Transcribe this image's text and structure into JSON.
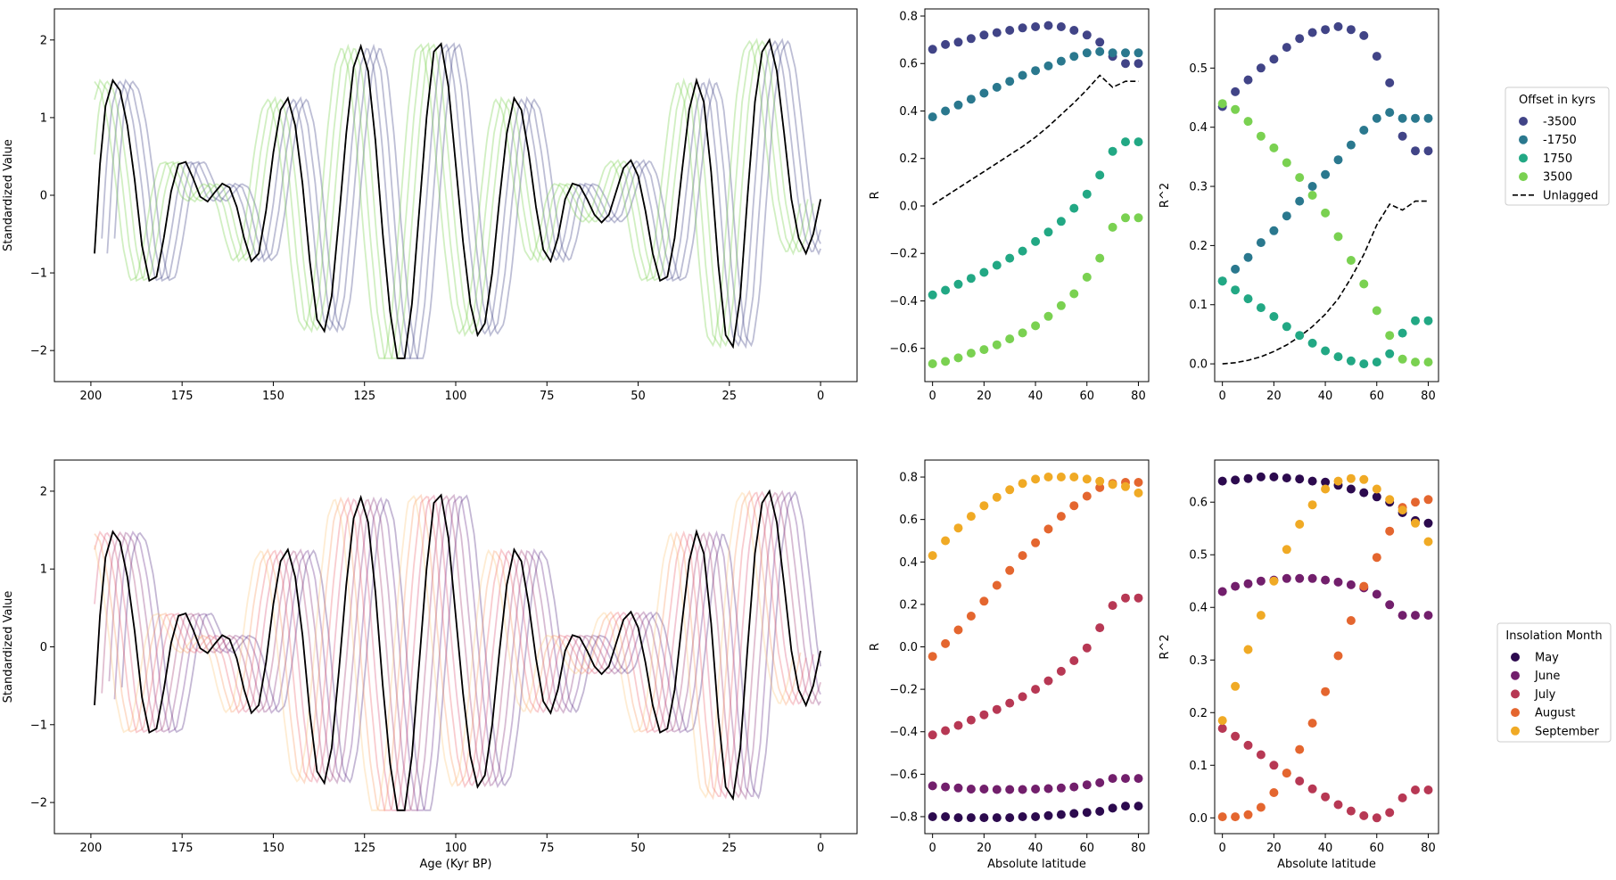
{
  "chart_data": [
    {
      "id": "ts_top",
      "type": "line",
      "ylabel": "Standardized Value",
      "xlabel": "",
      "xlim": [
        210,
        -10
      ],
      "ylim": [
        -2.4,
        2.4
      ],
      "xticks": [
        200,
        175,
        150,
        125,
        100,
        75,
        50,
        25,
        0
      ],
      "yticks": [
        -2,
        -1,
        0,
        1,
        2
      ],
      "reference_series": {
        "color": "#000000",
        "x": [
          199,
          197.5,
          196,
          194,
          192,
          190,
          188,
          186,
          184,
          182,
          180,
          178,
          176,
          174,
          172,
          170,
          168,
          166,
          164,
          162,
          160,
          158,
          156,
          154,
          152,
          150,
          148,
          146,
          144,
          142,
          140,
          138,
          136,
          134,
          132,
          130,
          128,
          126,
          124,
          122,
          120,
          118,
          116,
          114,
          112,
          110,
          108,
          106,
          104,
          102,
          100,
          98,
          96,
          94,
          92,
          90,
          88,
          86,
          84,
          82,
          80,
          78,
          76,
          74,
          72,
          70,
          68,
          66,
          64,
          62,
          60,
          58,
          56,
          54,
          52,
          50,
          48,
          46,
          44,
          42,
          40,
          38,
          36,
          34,
          32,
          30,
          28,
          26,
          24,
          22,
          20,
          18,
          16,
          14,
          12,
          10,
          8,
          6,
          4,
          2,
          0
        ],
        "y": [
          -0.75,
          0.4,
          1.15,
          1.48,
          1.35,
          0.9,
          0.2,
          -0.65,
          -1.1,
          -1.05,
          -0.55,
          0.05,
          0.4,
          0.43,
          0.22,
          -0.02,
          -0.08,
          0.04,
          0.15,
          0.1,
          -0.15,
          -0.55,
          -0.85,
          -0.75,
          -0.2,
          0.55,
          1.1,
          1.25,
          0.9,
          0.15,
          -0.85,
          -1.6,
          -1.75,
          -1.3,
          -0.3,
          0.8,
          1.65,
          1.92,
          1.6,
          0.7,
          -0.5,
          -1.5,
          -2.1,
          -2.1,
          -1.4,
          -0.2,
          1.0,
          1.85,
          1.95,
          1.4,
          0.4,
          -0.6,
          -1.4,
          -1.8,
          -1.65,
          -1.0,
          -0.05,
          0.8,
          1.25,
          1.1,
          0.55,
          -0.15,
          -0.7,
          -0.85,
          -0.55,
          -0.05,
          0.15,
          0.12,
          -0.05,
          -0.25,
          -0.35,
          -0.25,
          0.05,
          0.35,
          0.45,
          0.25,
          -0.2,
          -0.75,
          -1.1,
          -1.05,
          -0.55,
          0.3,
          1.1,
          1.48,
          1.2,
          0.3,
          -0.9,
          -1.8,
          -1.95,
          -1.3,
          0.0,
          1.2,
          1.85,
          2.0,
          1.6,
          0.8,
          -0.05,
          -0.55,
          -0.75,
          -0.5,
          -0.05
        ]
      },
      "lagged_series": {
        "base_phase_x": 199,
        "count": 7,
        "step_kyr": 1.75,
        "colors": [
          "#414487",
          "#414487",
          "#414487",
          "#888888",
          "#7ad151",
          "#7ad151",
          "#7ad151"
        ],
        "alpha": 0.35
      }
    },
    {
      "id": "R_top",
      "type": "scatter",
      "ylabel": "R",
      "xlabel": "",
      "xlim": [
        -3,
        84
      ],
      "ylim": [
        -0.74,
        0.83
      ],
      "xticks": [
        0,
        20,
        40,
        60,
        80
      ],
      "yticks": [
        -0.6,
        -0.4,
        -0.2,
        0.0,
        0.2,
        0.4,
        0.6,
        0.8
      ],
      "x": [
        0,
        5,
        10,
        15,
        20,
        25,
        30,
        35,
        40,
        45,
        50,
        55,
        60,
        65,
        70,
        75,
        80
      ],
      "series": [
        {
          "color": "#414487",
          "values": [
            0.66,
            0.68,
            0.69,
            0.705,
            0.72,
            0.73,
            0.74,
            0.75,
            0.755,
            0.76,
            0.755,
            0.74,
            0.72,
            0.69,
            0.63,
            0.6,
            0.6
          ]
        },
        {
          "color": "#2a788e",
          "values": [
            0.375,
            0.4,
            0.425,
            0.45,
            0.475,
            0.5,
            0.525,
            0.55,
            0.57,
            0.59,
            0.61,
            0.63,
            0.645,
            0.65,
            0.645,
            0.645,
            0.645
          ]
        },
        {
          "color": "#22a884",
          "values": [
            -0.375,
            -0.355,
            -0.33,
            -0.305,
            -0.28,
            -0.25,
            -0.22,
            -0.19,
            -0.15,
            -0.11,
            -0.065,
            -0.01,
            0.05,
            0.13,
            0.23,
            0.27,
            0.27
          ]
        },
        {
          "color": "#7ad151",
          "values": [
            -0.665,
            -0.655,
            -0.64,
            -0.62,
            -0.605,
            -0.585,
            -0.56,
            -0.535,
            -0.505,
            -0.465,
            -0.42,
            -0.37,
            -0.3,
            -0.22,
            -0.09,
            -0.05,
            -0.05
          ]
        }
      ],
      "line": {
        "color": "#000000",
        "values": [
          0.005,
          0.04,
          0.075,
          0.11,
          0.145,
          0.18,
          0.215,
          0.25,
          0.29,
          0.335,
          0.385,
          0.435,
          0.49,
          0.55,
          0.5,
          0.525,
          0.525
        ]
      }
    },
    {
      "id": "R2_top",
      "type": "scatter",
      "ylabel": "R^2",
      "xlabel": "",
      "xlim": [
        -3,
        84
      ],
      "ylim": [
        -0.03,
        0.6
      ],
      "xticks": [
        0,
        20,
        40,
        60,
        80
      ],
      "yticks": [
        0.0,
        0.1,
        0.2,
        0.3,
        0.4,
        0.5
      ],
      "x": [
        0,
        5,
        10,
        15,
        20,
        25,
        30,
        35,
        40,
        45,
        50,
        55,
        60,
        65,
        70,
        75,
        80
      ],
      "series": [
        {
          "color": "#414487",
          "values": [
            0.435,
            0.46,
            0.48,
            0.5,
            0.515,
            0.535,
            0.55,
            0.56,
            0.565,
            0.57,
            0.565,
            0.555,
            0.52,
            0.475,
            0.385,
            0.36,
            0.36
          ]
        },
        {
          "color": "#2a788e",
          "values": [
            0.14,
            0.16,
            0.18,
            0.205,
            0.225,
            0.25,
            0.275,
            0.3,
            0.32,
            0.345,
            0.37,
            0.395,
            0.415,
            0.425,
            0.415,
            0.415,
            0.415
          ]
        },
        {
          "color": "#22a884",
          "values": [
            0.14,
            0.125,
            0.11,
            0.095,
            0.08,
            0.063,
            0.048,
            0.035,
            0.022,
            0.012,
            0.005,
            0.0,
            0.003,
            0.017,
            0.052,
            0.073,
            0.073
          ]
        },
        {
          "color": "#7ad151",
          "values": [
            0.44,
            0.43,
            0.41,
            0.385,
            0.365,
            0.34,
            0.315,
            0.285,
            0.255,
            0.215,
            0.175,
            0.135,
            0.09,
            0.048,
            0.008,
            0.003,
            0.003
          ]
        }
      ],
      "line": {
        "color": "#000000",
        "values": [
          0.0,
          0.002,
          0.006,
          0.012,
          0.021,
          0.032,
          0.046,
          0.063,
          0.084,
          0.11,
          0.145,
          0.185,
          0.235,
          0.27,
          0.26,
          0.275,
          0.275
        ]
      }
    },
    {
      "id": "ts_bottom",
      "type": "line",
      "ylabel": "Standardized Value",
      "xlabel": "Age (Kyr BP)",
      "xlim": [
        210,
        -10
      ],
      "ylim": [
        -2.4,
        2.4
      ],
      "xticks": [
        200,
        175,
        150,
        125,
        100,
        75,
        50,
        25,
        0
      ],
      "yticks": [
        -2,
        -1,
        0,
        1,
        2
      ],
      "reference_series": {
        "color": "#000000",
        "x": [
          199,
          197.5,
          196,
          194,
          192,
          190,
          188,
          186,
          184,
          182,
          180,
          178,
          176,
          174,
          172,
          170,
          168,
          166,
          164,
          162,
          160,
          158,
          156,
          154,
          152,
          150,
          148,
          146,
          144,
          142,
          140,
          138,
          136,
          134,
          132,
          130,
          128,
          126,
          124,
          122,
          120,
          118,
          116,
          114,
          112,
          110,
          108,
          106,
          104,
          102,
          100,
          98,
          96,
          94,
          92,
          90,
          88,
          86,
          84,
          82,
          80,
          78,
          76,
          74,
          72,
          70,
          68,
          66,
          64,
          62,
          60,
          58,
          56,
          54,
          52,
          50,
          48,
          46,
          44,
          42,
          40,
          38,
          36,
          34,
          32,
          30,
          28,
          26,
          24,
          22,
          20,
          18,
          16,
          14,
          12,
          10,
          8,
          6,
          4,
          2,
          0
        ],
        "y": [
          -0.75,
          0.4,
          1.15,
          1.48,
          1.35,
          0.9,
          0.2,
          -0.65,
          -1.1,
          -1.05,
          -0.55,
          0.05,
          0.4,
          0.43,
          0.22,
          -0.02,
          -0.08,
          0.04,
          0.15,
          0.1,
          -0.15,
          -0.55,
          -0.85,
          -0.75,
          -0.2,
          0.55,
          1.1,
          1.25,
          0.9,
          0.15,
          -0.85,
          -1.6,
          -1.75,
          -1.3,
          -0.3,
          0.8,
          1.65,
          1.92,
          1.6,
          0.7,
          -0.5,
          -1.5,
          -2.1,
          -2.1,
          -1.4,
          -0.2,
          1.0,
          1.85,
          1.95,
          1.4,
          0.4,
          -0.6,
          -1.4,
          -1.8,
          -1.65,
          -1.0,
          -0.05,
          0.8,
          1.25,
          1.1,
          0.55,
          -0.15,
          -0.7,
          -0.85,
          -0.55,
          -0.05,
          0.15,
          0.12,
          -0.05,
          -0.25,
          -0.35,
          -0.25,
          0.05,
          0.35,
          0.45,
          0.25,
          -0.2,
          -0.75,
          -1.1,
          -1.05,
          -0.55,
          0.3,
          1.1,
          1.48,
          1.2,
          0.3,
          -0.9,
          -1.8,
          -1.95,
          -1.3,
          0.0,
          1.2,
          1.85,
          2.0,
          1.6,
          0.8,
          -0.05,
          -0.55,
          -0.75,
          -0.5,
          -0.05
        ]
      },
      "lagged_series": {
        "base_phase_x": 199,
        "count": 9,
        "step_kyr": 1.8,
        "colors": [
          "#3b0f70",
          "#5a167e",
          "#7a1d6d",
          "#9a2865",
          "#b73779",
          "#d3436e",
          "#eb5760",
          "#f98e52",
          "#fcbf6c"
        ],
        "alpha": 0.3
      }
    },
    {
      "id": "R_bottom",
      "type": "scatter",
      "ylabel": "R",
      "xlabel": "Absolute latitude",
      "xlim": [
        -3,
        84
      ],
      "ylim": [
        -0.88,
        0.88
      ],
      "xticks": [
        0,
        20,
        40,
        60,
        80
      ],
      "yticks": [
        -0.8,
        -0.6,
        -0.4,
        -0.2,
        0.0,
        0.2,
        0.4,
        0.6,
        0.8
      ],
      "x": [
        0,
        5,
        10,
        15,
        20,
        25,
        30,
        35,
        40,
        45,
        50,
        55,
        60,
        65,
        70,
        75,
        80
      ],
      "series": [
        {
          "color": "#2c0a4e",
          "values": [
            -0.8,
            -0.8,
            -0.805,
            -0.805,
            -0.805,
            -0.805,
            -0.805,
            -0.8,
            -0.8,
            -0.795,
            -0.79,
            -0.785,
            -0.78,
            -0.775,
            -0.76,
            -0.75,
            -0.75
          ]
        },
        {
          "color": "#721f6c",
          "values": [
            -0.655,
            -0.66,
            -0.665,
            -0.67,
            -0.67,
            -0.672,
            -0.672,
            -0.672,
            -0.67,
            -0.668,
            -0.665,
            -0.66,
            -0.65,
            -0.64,
            -0.62,
            -0.62,
            -0.62
          ]
        },
        {
          "color": "#b73854",
          "values": [
            -0.415,
            -0.395,
            -0.37,
            -0.345,
            -0.32,
            -0.295,
            -0.265,
            -0.235,
            -0.2,
            -0.16,
            -0.115,
            -0.065,
            -0.005,
            0.09,
            0.195,
            0.23,
            0.23
          ]
        },
        {
          "color": "#e4662f",
          "values": [
            -0.045,
            0.015,
            0.08,
            0.145,
            0.215,
            0.29,
            0.36,
            0.43,
            0.49,
            0.555,
            0.615,
            0.665,
            0.71,
            0.75,
            0.77,
            0.775,
            0.775
          ]
        },
        {
          "color": "#f0aa25",
          "values": [
            0.43,
            0.5,
            0.56,
            0.615,
            0.665,
            0.705,
            0.74,
            0.77,
            0.79,
            0.8,
            0.8,
            0.8,
            0.79,
            0.78,
            0.765,
            0.755,
            0.725
          ]
        }
      ]
    },
    {
      "id": "R2_bottom",
      "type": "scatter",
      "ylabel": "R^2",
      "xlabel": "Absolute latitude",
      "xlim": [
        -3,
        84
      ],
      "ylim": [
        -0.03,
        0.68
      ],
      "xticks": [
        0,
        20,
        40,
        60,
        80
      ],
      "yticks": [
        0.0,
        0.1,
        0.2,
        0.3,
        0.4,
        0.5,
        0.6
      ],
      "x": [
        0,
        5,
        10,
        15,
        20,
        25,
        30,
        35,
        40,
        45,
        50,
        55,
        60,
        65,
        70,
        75,
        80
      ],
      "series": [
        {
          "color": "#2c0a4e",
          "values": [
            0.64,
            0.642,
            0.645,
            0.648,
            0.648,
            0.646,
            0.644,
            0.64,
            0.638,
            0.632,
            0.625,
            0.618,
            0.61,
            0.6,
            0.58,
            0.565,
            0.56
          ]
        },
        {
          "color": "#721f6c",
          "values": [
            0.43,
            0.44,
            0.445,
            0.45,
            0.452,
            0.455,
            0.455,
            0.455,
            0.452,
            0.448,
            0.443,
            0.437,
            0.425,
            0.405,
            0.385,
            0.385,
            0.385
          ]
        },
        {
          "color": "#b73854",
          "values": [
            0.17,
            0.155,
            0.138,
            0.12,
            0.1,
            0.085,
            0.07,
            0.055,
            0.04,
            0.025,
            0.013,
            0.004,
            0.0,
            0.01,
            0.038,
            0.053,
            0.053
          ]
        },
        {
          "color": "#e4662f",
          "values": [
            0.002,
            0.002,
            0.006,
            0.02,
            0.048,
            0.085,
            0.13,
            0.18,
            0.24,
            0.308,
            0.375,
            0.44,
            0.495,
            0.545,
            0.59,
            0.6,
            0.605
          ]
        },
        {
          "color": "#f0aa25",
          "values": [
            0.185,
            0.25,
            0.32,
            0.385,
            0.45,
            0.51,
            0.558,
            0.595,
            0.625,
            0.64,
            0.645,
            0.643,
            0.625,
            0.605,
            0.585,
            0.56,
            0.525
          ]
        }
      ]
    }
  ],
  "legends": [
    {
      "title": "Offset in kyrs",
      "entries": [
        {
          "label": "-3500",
          "color": "#414487",
          "kind": "marker"
        },
        {
          "label": "-1750",
          "color": "#2a788e",
          "kind": "marker"
        },
        {
          "label": "1750",
          "color": "#22a884",
          "kind": "marker"
        },
        {
          "label": "3500",
          "color": "#7ad151",
          "kind": "marker"
        },
        {
          "label": "Unlagged",
          "color": "#000000",
          "kind": "dashed"
        }
      ]
    },
    {
      "title": "Insolation Month",
      "entries": [
        {
          "label": "May",
          "color": "#2c0a4e",
          "kind": "marker"
        },
        {
          "label": "June",
          "color": "#721f6c",
          "kind": "marker"
        },
        {
          "label": "July",
          "color": "#b73854",
          "kind": "marker"
        },
        {
          "label": "August",
          "color": "#e4662f",
          "kind": "marker"
        },
        {
          "label": "September",
          "color": "#f0aa25",
          "kind": "marker"
        }
      ]
    }
  ]
}
